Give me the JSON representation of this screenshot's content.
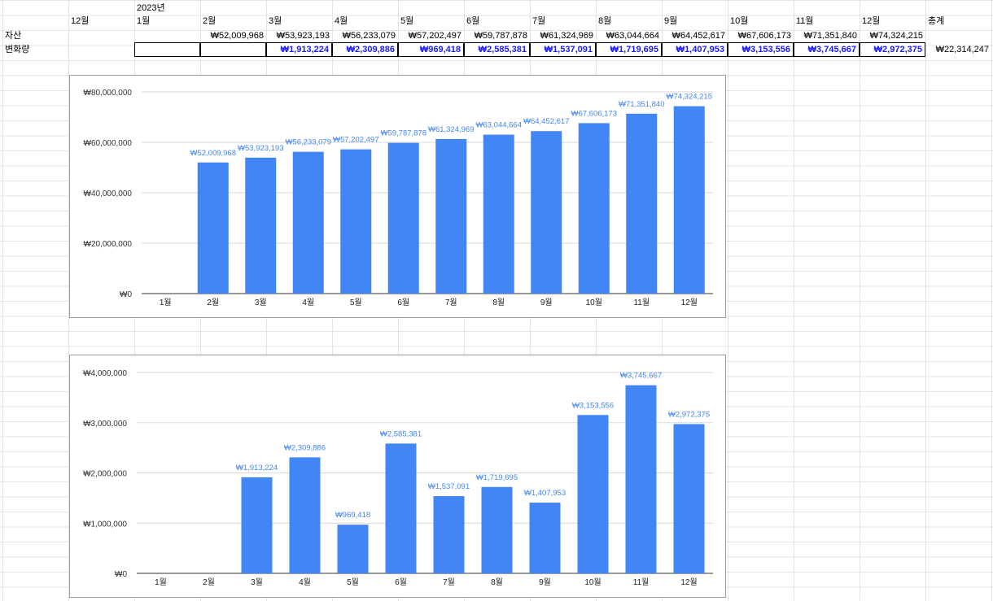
{
  "sheet": {
    "year_label": "2023년",
    "header_row": [
      "12월",
      "1월",
      "2월",
      "3월",
      "4월",
      "5월",
      "6월",
      "7월",
      "8월",
      "9월",
      "10월",
      "11월",
      "12월",
      "총계"
    ],
    "asset_row_label": "자산",
    "asset_values": [
      "",
      "",
      "₩52,009,968",
      "₩53,923,193",
      "₩56,233,079",
      "₩57,202,497",
      "₩59,787,878",
      "₩61,324,969",
      "₩63,044,664",
      "₩64,452,617",
      "₩67,606,173",
      "₩71,351,840",
      "₩74,324,215",
      ""
    ],
    "delta_row_label": "변화량",
    "delta_values": [
      "",
      "",
      "",
      "₩1,913,224",
      "₩2,309,886",
      "₩969,418",
      "₩2,585,381",
      "₩1,537,091",
      "₩1,719,695",
      "₩1,407,953",
      "₩3,153,556",
      "₩3,745,667",
      "₩2,972,375",
      "₩22,314,247"
    ]
  },
  "chart_data": [
    {
      "type": "bar",
      "categories": [
        "1월",
        "2월",
        "3월",
        "4월",
        "5월",
        "6월",
        "7월",
        "8월",
        "9월",
        "10월",
        "11월",
        "12월"
      ],
      "values": [
        null,
        52009968,
        53923193,
        56233079,
        57202497,
        59787878,
        61324969,
        63044664,
        64452617,
        67606173,
        71351840,
        74324215
      ],
      "data_labels": [
        "",
        "₩52,009,968",
        "₩53,923,193",
        "₩56,233,079",
        "₩57,202,497",
        "₩59,787,878",
        "₩61,324,969",
        "₩63,044,664",
        "₩64,452,617",
        "₩67,606,173",
        "₩71,351,840",
        "₩74,324,215"
      ],
      "y_ticks": [
        "₩0",
        "₩20,000,000",
        "₩40,000,000",
        "₩60,000,000",
        "₩80,000,000"
      ],
      "ylim": [
        0,
        80000000
      ],
      "grid": true,
      "bar_color": "#4285f4",
      "label_color": "#4285f4"
    },
    {
      "type": "bar",
      "categories": [
        "1월",
        "2월",
        "3월",
        "4월",
        "5월",
        "6월",
        "7월",
        "8월",
        "9월",
        "10월",
        "11월",
        "12월"
      ],
      "values": [
        null,
        null,
        1913224,
        2309886,
        969418,
        2585381,
        1537091,
        1719695,
        1407953,
        3153556,
        3745667,
        2972375
      ],
      "data_labels": [
        "",
        "",
        "₩1,913,224",
        "₩2,309,886",
        "₩969,418",
        "₩2,585,381",
        "₩1,537,091",
        "₩1,719,695",
        "₩1,407,953",
        "₩3,153,556",
        "₩3,745,667",
        "₩2,972,375"
      ],
      "y_ticks": [
        "₩0",
        "₩1,000,000",
        "₩2,000,000",
        "₩3,000,000",
        "₩4,000,000"
      ],
      "ylim": [
        0,
        4000000
      ],
      "grid": true,
      "bar_color": "#4285f4",
      "label_color": "#4285f4"
    }
  ]
}
